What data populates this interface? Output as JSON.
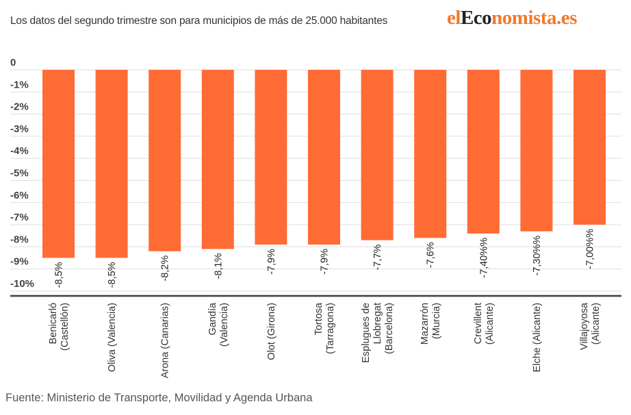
{
  "header": {
    "subtitle": "Los datos del segundo trimestre son para municipios de más de 25.000 habitantes",
    "logo": {
      "part1": "el",
      "part2": "Eco",
      "part3": "nomista.es",
      "orange": "#f07a2e",
      "dark": "#222222"
    }
  },
  "footer": {
    "source": "Fuente: Ministerio de Transporte, Movilidad y Agenda Urbana"
  },
  "chart_data": {
    "type": "bar",
    "title": "",
    "xlabel": "",
    "ylabel": "",
    "ylim": [
      -10,
      0
    ],
    "grid": true,
    "bar_color": "#ff6b35",
    "y_ticks": [
      {
        "value": 0,
        "label": "0"
      },
      {
        "value": -1,
        "label": "-1%"
      },
      {
        "value": -2,
        "label": "-2%"
      },
      {
        "value": -3,
        "label": "-3%"
      },
      {
        "value": -4,
        "label": "-4%"
      },
      {
        "value": -5,
        "label": "-5%"
      },
      {
        "value": -6,
        "label": "-6%"
      },
      {
        "value": -7,
        "label": "-7%"
      },
      {
        "value": -8,
        "label": "-8%"
      },
      {
        "value": -9,
        "label": "-9%"
      },
      {
        "value": -10,
        "label": "-10%"
      }
    ],
    "categories": [
      [
        "Benicarló",
        "(Castellón)"
      ],
      [
        "Oliva (Valencia)"
      ],
      [
        "Arona (Canarias)"
      ],
      [
        "Gandía",
        "(Valencia)"
      ],
      [
        "Olot (Girona)"
      ],
      [
        "Tortosa",
        "(Tarragona)"
      ],
      [
        "Esplugues de",
        "Llobregat",
        "(Barcelona)"
      ],
      [
        "Mazarrón",
        "(Murcia)"
      ],
      [
        "Crevillent",
        "(Alicante)"
      ],
      [
        "Elche (Alicante)"
      ],
      [
        "Villajoyosa",
        "(Alicante)"
      ]
    ],
    "values": [
      -8.5,
      -8.5,
      -8.2,
      -8.1,
      -7.9,
      -7.9,
      -7.7,
      -7.6,
      -7.4,
      -7.3,
      -7.0
    ],
    "data_labels": [
      "-8,5%",
      "-8,5%",
      "-8,2%",
      "-8,1%",
      "-7,9%",
      "-7,9%",
      "-7,7%",
      "-7,6%",
      "-7,40%%",
      "-7,30%%",
      "-7,00%%"
    ]
  }
}
